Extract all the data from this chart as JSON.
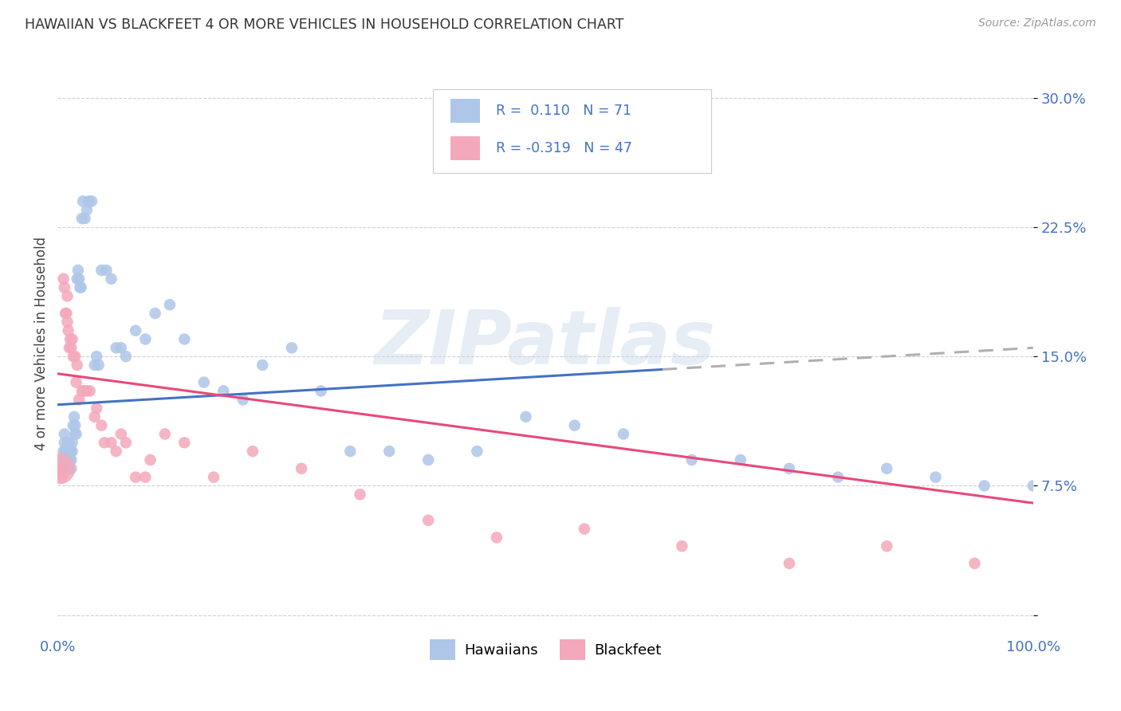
{
  "title": "HAWAIIAN VS BLACKFEET 4 OR MORE VEHICLES IN HOUSEHOLD CORRELATION CHART",
  "source": "Source: ZipAtlas.com",
  "ylabel": "4 or more Vehicles in Household",
  "yticks": [
    0.0,
    0.075,
    0.15,
    0.225,
    0.3
  ],
  "ytick_labels": [
    "",
    "7.5%",
    "15.0%",
    "22.5%",
    "30.0%"
  ],
  "xlim": [
    0.0,
    1.0
  ],
  "ylim": [
    -0.01,
    0.325
  ],
  "watermark": "ZIPatlas",
  "hawaiian_color": "#aec6e8",
  "blackfeet_color": "#f4a8bb",
  "trend_hawaiian_color": "#4472c4",
  "trend_blackfeet_color": "#e8497a",
  "trend_hawaiian_dashed_color": "#b0b0b0",
  "trend_h_x0": 0.0,
  "trend_h_y0": 0.122,
  "trend_h_x1": 1.0,
  "trend_h_y1": 0.155,
  "trend_h_solid_end": 0.62,
  "trend_b_x0": 0.0,
  "trend_b_y0": 0.14,
  "trend_b_x1": 1.0,
  "trend_b_y1": 0.065,
  "hawaiian_x": [
    0.004,
    0.005,
    0.006,
    0.007,
    0.007,
    0.008,
    0.008,
    0.009,
    0.009,
    0.01,
    0.01,
    0.011,
    0.012,
    0.012,
    0.013,
    0.013,
    0.014,
    0.014,
    0.015,
    0.015,
    0.016,
    0.017,
    0.018,
    0.018,
    0.019,
    0.02,
    0.021,
    0.022,
    0.023,
    0.024,
    0.025,
    0.026,
    0.028,
    0.03,
    0.032,
    0.035,
    0.038,
    0.04,
    0.042,
    0.045,
    0.05,
    0.055,
    0.06,
    0.065,
    0.07,
    0.08,
    0.09,
    0.1,
    0.115,
    0.13,
    0.15,
    0.17,
    0.19,
    0.21,
    0.24,
    0.27,
    0.3,
    0.34,
    0.38,
    0.43,
    0.48,
    0.53,
    0.58,
    0.65,
    0.7,
    0.75,
    0.8,
    0.85,
    0.9,
    0.95,
    1.0
  ],
  "hawaiian_y": [
    0.085,
    0.09,
    0.095,
    0.1,
    0.105,
    0.09,
    0.095,
    0.085,
    0.09,
    0.1,
    0.095,
    0.1,
    0.085,
    0.095,
    0.095,
    0.09,
    0.085,
    0.09,
    0.095,
    0.1,
    0.11,
    0.115,
    0.105,
    0.11,
    0.105,
    0.195,
    0.2,
    0.195,
    0.19,
    0.19,
    0.23,
    0.24,
    0.23,
    0.235,
    0.24,
    0.24,
    0.145,
    0.15,
    0.145,
    0.2,
    0.2,
    0.195,
    0.155,
    0.155,
    0.15,
    0.165,
    0.16,
    0.175,
    0.18,
    0.16,
    0.135,
    0.13,
    0.125,
    0.145,
    0.155,
    0.13,
    0.095,
    0.095,
    0.09,
    0.095,
    0.115,
    0.11,
    0.105,
    0.09,
    0.09,
    0.085,
    0.08,
    0.085,
    0.08,
    0.075,
    0.075
  ],
  "blackfeet_x": [
    0.002,
    0.004,
    0.005,
    0.006,
    0.007,
    0.008,
    0.009,
    0.01,
    0.01,
    0.011,
    0.012,
    0.013,
    0.014,
    0.015,
    0.016,
    0.018,
    0.019,
    0.02,
    0.022,
    0.025,
    0.027,
    0.03,
    0.033,
    0.038,
    0.04,
    0.045,
    0.048,
    0.055,
    0.06,
    0.065,
    0.07,
    0.08,
    0.09,
    0.095,
    0.11,
    0.13,
    0.16,
    0.2,
    0.25,
    0.31,
    0.38,
    0.45,
    0.54,
    0.64,
    0.75,
    0.85,
    0.94
  ],
  "blackfeet_y": [
    0.085,
    0.085,
    0.08,
    0.195,
    0.19,
    0.175,
    0.175,
    0.17,
    0.185,
    0.165,
    0.155,
    0.16,
    0.155,
    0.16,
    0.15,
    0.15,
    0.135,
    0.145,
    0.125,
    0.13,
    0.13,
    0.13,
    0.13,
    0.115,
    0.12,
    0.11,
    0.1,
    0.1,
    0.095,
    0.105,
    0.1,
    0.08,
    0.08,
    0.09,
    0.105,
    0.1,
    0.08,
    0.095,
    0.085,
    0.07,
    0.055,
    0.045,
    0.05,
    0.04,
    0.03,
    0.04,
    0.03
  ],
  "blackfeet_size_big_idx": 0,
  "blackfeet_size_big": 800
}
